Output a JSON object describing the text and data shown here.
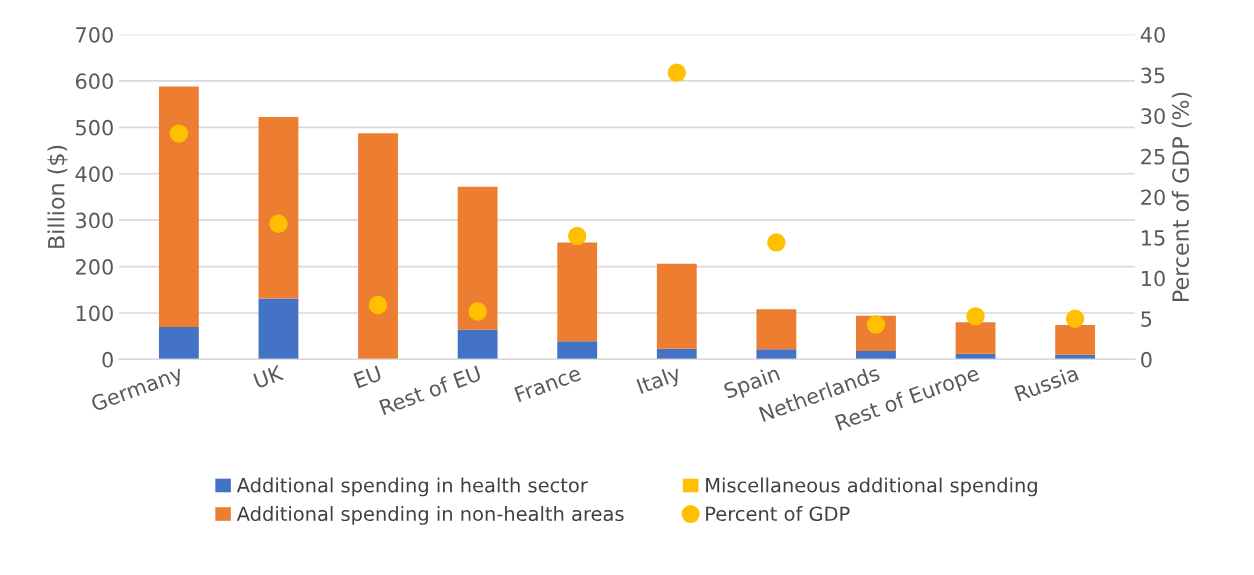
{
  "chart_data": {
    "type": "bar",
    "stacked": true,
    "ylabel": "Billion ($)",
    "y2label": "Percent of GDP (%)",
    "categories": [
      "Germany",
      "UK",
      "EU",
      "Rest of EU",
      "France",
      "Italy",
      "Spain",
      "Netherlands",
      "Rest of Europe",
      "Russia"
    ],
    "series": [
      {
        "name": "Additional spending in health sector",
        "color": "#4472c4",
        "values": [
          70,
          131,
          0,
          64,
          39,
          23,
          22,
          18,
          12,
          10
        ]
      },
      {
        "name": "Additional spending in non-health areas",
        "color": "#ed7d31",
        "values": [
          518,
          391,
          487,
          308,
          213,
          183,
          86,
          76,
          68,
          64
        ]
      },
      {
        "name": "Miscellaneous additional spending",
        "color": "#ffc000",
        "values": [
          null,
          null,
          null,
          null,
          null,
          null,
          null,
          null,
          null,
          null
        ]
      },
      {
        "name": "Percent of GDP",
        "type": "scatter",
        "axis": "y2",
        "color": "#ffc000",
        "marker": "circle",
        "values": [
          27.8,
          16.7,
          6.7,
          5.9,
          15.2,
          35.3,
          14.4,
          4.3,
          5.3,
          5.0
        ]
      }
    ],
    "ylim": [
      0,
      700
    ],
    "yticks": [
      0,
      100,
      200,
      300,
      400,
      500,
      600,
      700
    ],
    "y2lim": [
      0,
      40
    ],
    "y2ticks": [
      0,
      5,
      10,
      15,
      20,
      25,
      30,
      35,
      40
    ],
    "grid": "y",
    "legend": "bottom"
  }
}
